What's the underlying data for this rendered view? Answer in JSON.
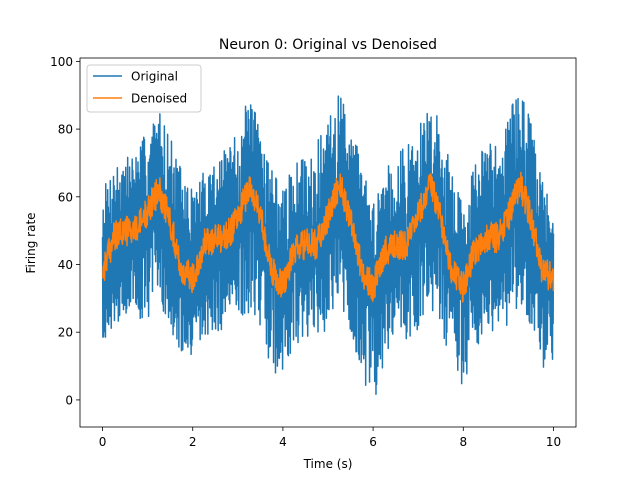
{
  "chart_data": {
    "type": "line",
    "title": "Neuron 0: Original vs Denoised",
    "xlabel": "Time (s)",
    "ylabel": "Firing rate",
    "xlim": [
      -0.5,
      10.5
    ],
    "ylim": [
      -8,
      101
    ],
    "xticks": [
      0,
      2,
      4,
      6,
      8,
      10
    ],
    "xtick_labels": [
      "0",
      "2",
      "4",
      "6",
      "8",
      "10"
    ],
    "yticks": [
      0,
      20,
      40,
      60,
      80,
      100
    ],
    "ytick_labels": [
      "0",
      "20",
      "40",
      "60",
      "80",
      "100"
    ],
    "grid": false,
    "legend": {
      "position": "upper-left"
    },
    "series": [
      {
        "name": "Original",
        "color": "#1f77b4",
        "x": [
          0,
          0.25,
          0.5,
          0.75,
          1.0,
          1.25,
          1.5,
          1.75,
          2.0,
          2.25,
          2.5,
          2.75,
          3.0,
          3.25,
          3.5,
          3.75,
          4.0,
          4.25,
          4.5,
          4.75,
          5.0,
          5.25,
          5.5,
          5.75,
          6.0,
          6.25,
          6.5,
          6.75,
          7.0,
          7.25,
          7.5,
          7.75,
          8.0,
          8.25,
          8.5,
          8.75,
          9.0,
          9.25,
          9.5,
          9.75,
          10.0
        ],
        "y": [
          40,
          47,
          50,
          50,
          54,
          60,
          52,
          40,
          37,
          45,
          47,
          47,
          52,
          58,
          55,
          40,
          35,
          44,
          45,
          46,
          50,
          60,
          52,
          41,
          33,
          43,
          46,
          46,
          50,
          60,
          55,
          40,
          34,
          44,
          48,
          48,
          52,
          60,
          53,
          40,
          35
        ],
        "range_low": [
          17,
          22,
          25,
          24,
          24,
          30,
          20,
          12,
          10,
          18,
          20,
          20,
          22,
          26,
          22,
          8,
          6,
          15,
          18,
          19,
          20,
          28,
          18,
          8,
          -3,
          12,
          18,
          18,
          20,
          28,
          22,
          8,
          4,
          14,
          20,
          20,
          22,
          28,
          20,
          6,
          8
        ],
        "range_high": [
          62,
          70,
          72,
          74,
          80,
          86,
          78,
          68,
          62,
          68,
          72,
          74,
          80,
          90,
          82,
          70,
          62,
          70,
          72,
          76,
          82,
          92,
          84,
          70,
          58,
          70,
          74,
          75,
          80,
          88,
          82,
          68,
          58,
          70,
          76,
          78,
          84,
          95,
          82,
          66,
          55
        ]
      },
      {
        "name": "Denoised",
        "color": "#ff7f0e",
        "x": [
          0,
          0.25,
          0.5,
          0.75,
          1.0,
          1.25,
          1.5,
          1.75,
          2.0,
          2.25,
          2.5,
          2.75,
          3.0,
          3.25,
          3.5,
          3.75,
          4.0,
          4.25,
          4.5,
          4.75,
          5.0,
          5.25,
          5.5,
          5.75,
          6.0,
          6.25,
          6.5,
          6.75,
          7.0,
          7.25,
          7.5,
          7.75,
          8.0,
          8.25,
          8.5,
          8.75,
          9.0,
          9.25,
          9.5,
          9.75,
          10.0
        ],
        "y": [
          38,
          48,
          50,
          50,
          56,
          62,
          53,
          38,
          36,
          46,
          48,
          48,
          54,
          63,
          55,
          38,
          34,
          44,
          46,
          46,
          54,
          64,
          54,
          38,
          33,
          44,
          46,
          46,
          54,
          64,
          54,
          38,
          33,
          44,
          48,
          48,
          54,
          64,
          54,
          38,
          36
        ]
      }
    ]
  }
}
